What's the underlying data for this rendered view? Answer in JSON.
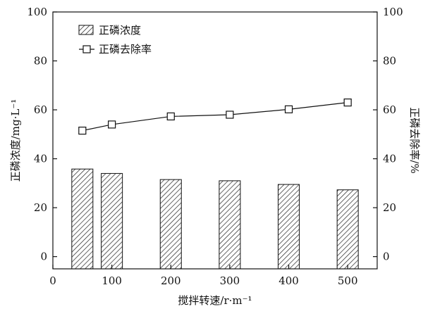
{
  "chart_data": {
    "type": "bar+line",
    "x_axis": {
      "label": "搅拌转速/r·m⁻¹",
      "range": [
        0,
        550
      ],
      "ticks": [
        0,
        100,
        200,
        300,
        400,
        500
      ]
    },
    "y_left": {
      "label": "正磷浓度/mg·L⁻¹",
      "range": [
        -5,
        100
      ],
      "ticks": [
        0,
        20,
        40,
        60,
        80,
        100
      ]
    },
    "y_right": {
      "label": "正磷去除率/%",
      "range": [
        -5,
        100
      ],
      "ticks": [
        0,
        20,
        40,
        60,
        80,
        100
      ]
    },
    "series": [
      {
        "name": "正磷浓度",
        "kind": "bar",
        "axis": "left",
        "fill": "hatch",
        "x": [
          50,
          100,
          200,
          300,
          400,
          500
        ],
        "values": [
          35.8,
          34.0,
          31.5,
          31.0,
          29.5,
          27.3
        ]
      },
      {
        "name": "正磷去除率",
        "kind": "line",
        "axis": "right",
        "marker": "open-square",
        "x": [
          50,
          100,
          200,
          300,
          400,
          500
        ],
        "values": [
          51.5,
          54.0,
          57.3,
          58.0,
          60.2,
          63.0
        ]
      }
    ],
    "legend": {
      "position": "top-left",
      "entries": [
        "正磷浓度",
        "正磷去除率"
      ]
    },
    "grid": false,
    "colors": {
      "axis": "#111111",
      "bar_fill": "#ffffff",
      "hatch": "#222222",
      "line": "#111111"
    }
  }
}
